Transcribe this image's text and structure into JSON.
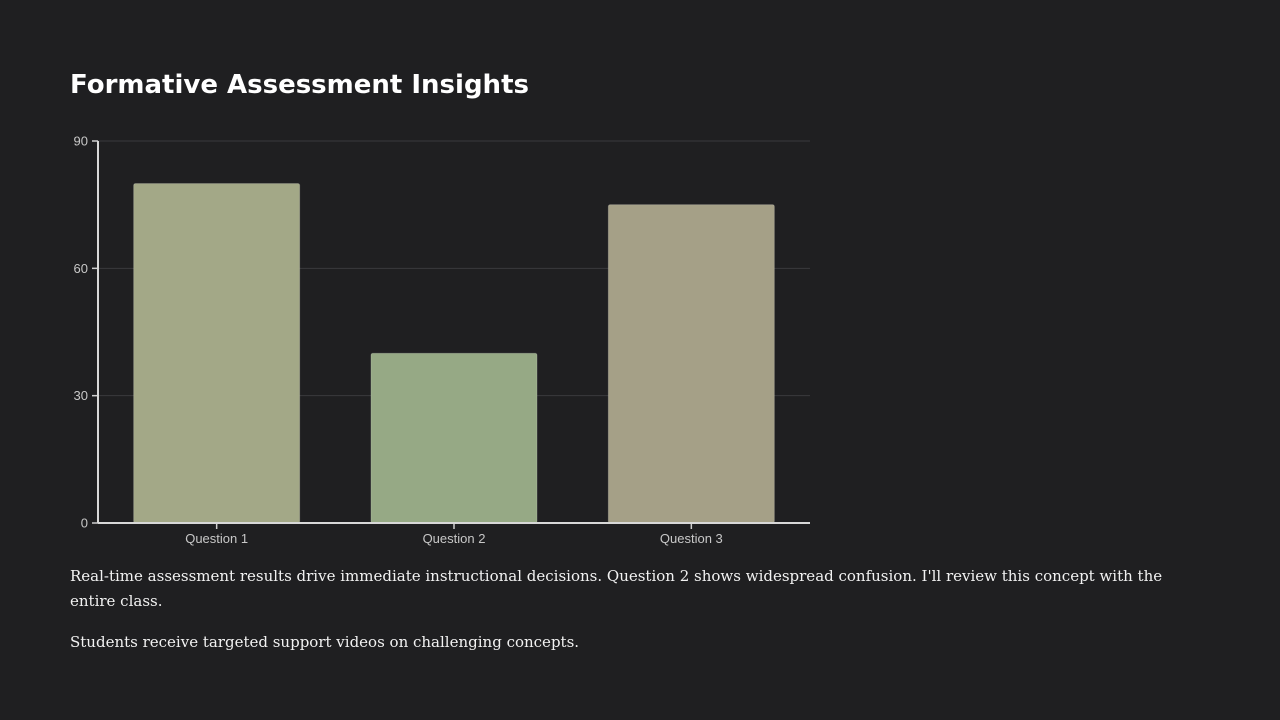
{
  "slide": {
    "title": "Formative Assessment Insights",
    "paragraphs": [
      "Real-time assessment results drive immediate instructional decisions. Question 2 shows widespread confusion. I'll review this concept with the entire class.",
      "Students receive targeted support videos on challenging concepts."
    ]
  },
  "chart_data": {
    "type": "bar",
    "categories": [
      "Question 1",
      "Question 2",
      "Question 3"
    ],
    "values": [
      80,
      40,
      75
    ],
    "colors": [
      "#a3a887",
      "#96a985",
      "#a5a087"
    ],
    "ylim": [
      0,
      90
    ],
    "yticks": [
      0,
      30,
      60,
      90
    ],
    "grid": true,
    "legend": "none",
    "xlabel": "",
    "ylabel": ""
  }
}
